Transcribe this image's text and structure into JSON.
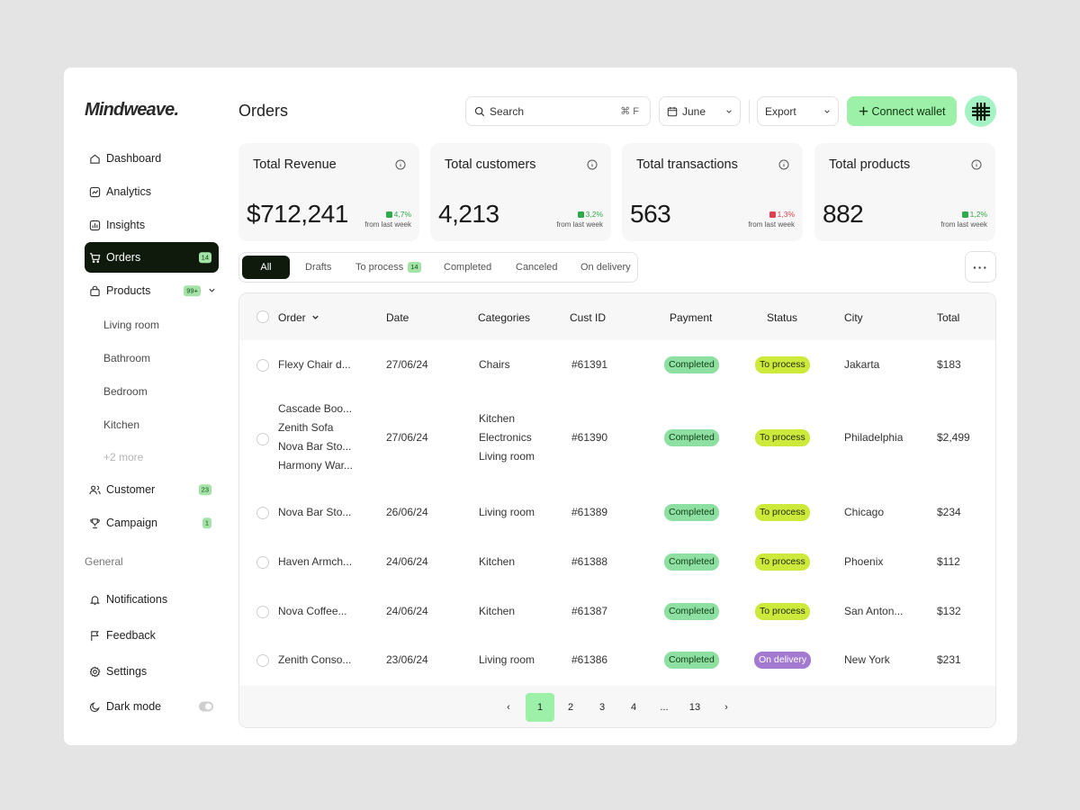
{
  "brand": {
    "name": "Mindweave."
  },
  "sidebar": {
    "items": [
      {
        "label": "Dashboard",
        "icon": "home-icon"
      },
      {
        "label": "Analytics",
        "icon": "chart-icon"
      },
      {
        "label": "Insights",
        "icon": "bar-chart-icon"
      },
      {
        "label": "Orders",
        "icon": "cart-icon",
        "badge": "14",
        "active": true
      },
      {
        "label": "Products",
        "icon": "bag-icon",
        "badge": "99+"
      },
      {
        "label": "Customer",
        "icon": "users-icon",
        "badge": "23"
      },
      {
        "label": "Campaign",
        "icon": "trophy-icon",
        "badge": "1"
      }
    ],
    "product_subitems": [
      "Living room",
      "Bathroom",
      "Bedroom",
      "Kitchen",
      "+2 more"
    ],
    "general_label": "General",
    "general_items": [
      {
        "label": "Notifications",
        "icon": "bell-icon"
      },
      {
        "label": "Feedback",
        "icon": "flag-icon"
      },
      {
        "label": "Settings",
        "icon": "gear-icon"
      },
      {
        "label": "Dark mode",
        "icon": "moon-icon",
        "toggle": false
      }
    ]
  },
  "header": {
    "title": "Orders",
    "search_placeholder": "Search",
    "search_shortcut": "⌘ F",
    "month": "June",
    "export": "Export",
    "connect_label": "Connect wallet"
  },
  "stats": [
    {
      "label": "Total Revenue",
      "value": "$712,241",
      "change": "4,7%",
      "trend": "up",
      "sub": "from last week"
    },
    {
      "label": "Total customers",
      "value": "4,213",
      "change": "3,2%",
      "trend": "up",
      "sub": "from last week"
    },
    {
      "label": "Total transactions",
      "value": "563",
      "change": "1,3%",
      "trend": "down",
      "sub": "from last week"
    },
    {
      "label": "Total products",
      "value": "882",
      "change": "1,2%",
      "trend": "up",
      "sub": "from last week"
    }
  ],
  "tabs": [
    {
      "label": "All",
      "active": true
    },
    {
      "label": "Drafts"
    },
    {
      "label": "To process",
      "badge": "14"
    },
    {
      "label": "Completed"
    },
    {
      "label": "Canceled"
    },
    {
      "label": "On delivery"
    }
  ],
  "more_label": "···",
  "table": {
    "columns": [
      "Order",
      "Date",
      "Categories",
      "Cust ID",
      "Payment",
      "Status",
      "City",
      "Total"
    ],
    "rows": [
      {
        "order": [
          "Flexy Chair d..."
        ],
        "date": "27/06/24",
        "categories": [
          "Chairs"
        ],
        "cust_id": "#61391",
        "payment": "Completed",
        "status": "To process",
        "city": "Jakarta",
        "total": "$183"
      },
      {
        "order": [
          "Cascade Boo...",
          "Zenith Sofa",
          "Nova Bar Sto...",
          "Harmony War..."
        ],
        "date": "27/06/24",
        "categories": [
          "Kitchen",
          "Electronics",
          "Living room"
        ],
        "cust_id": "#61390",
        "payment": "Completed",
        "status": "To process",
        "city": "Philadelphia",
        "total": "$2,499"
      },
      {
        "order": [
          "Nova Bar Sto..."
        ],
        "date": "26/06/24",
        "categories": [
          "Living room"
        ],
        "cust_id": "#61389",
        "payment": "Completed",
        "status": "To process",
        "city": "Chicago",
        "total": "$234"
      },
      {
        "order": [
          "Haven Armch..."
        ],
        "date": "24/06/24",
        "categories": [
          "Kitchen"
        ],
        "cust_id": "#61388",
        "payment": "Completed",
        "status": "To process",
        "city": "Phoenix",
        "total": "$112"
      },
      {
        "order": [
          "Nova Coffee..."
        ],
        "date": "24/06/24",
        "categories": [
          "Kitchen"
        ],
        "cust_id": "#61387",
        "payment": "Completed",
        "status": "To process",
        "city": "San Anton...",
        "total": "$132"
      },
      {
        "order": [
          "Zenith Conso..."
        ],
        "date": "23/06/24",
        "categories": [
          "Living room"
        ],
        "cust_id": "#61386",
        "payment": "Completed",
        "status": "On delivery",
        "city": "New York",
        "total": "$231"
      }
    ]
  },
  "pagination": {
    "prev": "‹",
    "next": "›",
    "pages": [
      "1",
      "2",
      "3",
      "4",
      "...",
      "13"
    ],
    "current": "1"
  },
  "colors": {
    "accent": "#9cf0a8",
    "dark": "#0f1a0d",
    "to_process": "#cdea3c",
    "on_delivery": "#a47ad1",
    "completed": "#8de0a1"
  }
}
